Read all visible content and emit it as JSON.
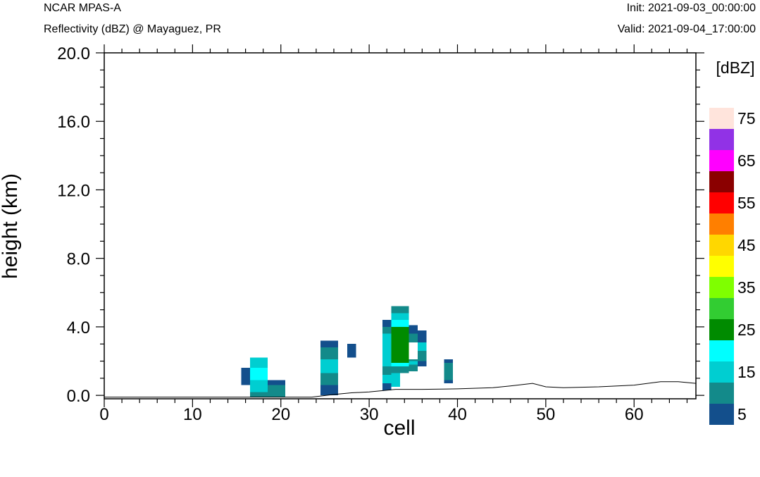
{
  "header": {
    "model": "NCAR MPAS-A",
    "field": "Reflectivity (dBZ) @ Mayaguez, PR",
    "init": "Init: 2021-09-03_00:00:00",
    "valid": "Valid: 2021-09-04_17:00:00"
  },
  "chart_data": {
    "type": "heatmap",
    "xlabel": "cell",
    "ylabel": "height (km)",
    "xlim": [
      0,
      67
    ],
    "ylim": [
      -0.2,
      20.0
    ],
    "x_ticks": [
      0,
      10,
      20,
      30,
      40,
      50,
      60
    ],
    "y_ticks": [
      0.0,
      4.0,
      8.0,
      12.0,
      16.0,
      20.0
    ],
    "y_tick_labels": [
      "0.0",
      "4.0",
      "8.0",
      "12.0",
      "16.0",
      "20.0"
    ],
    "colorbar": {
      "unit_label": "[dBZ]",
      "labels": [
        "5",
        "15",
        "25",
        "35",
        "45",
        "55",
        "65",
        "75"
      ],
      "levels": [
        5,
        10,
        15,
        20,
        25,
        30,
        35,
        40,
        45,
        50,
        55,
        60,
        65,
        70,
        75
      ],
      "colors": [
        "#134f8c",
        "#138a8a",
        "#00ced1",
        "#00ffff",
        "#008b00",
        "#32cd32",
        "#7fff00",
        "#ffff00",
        "#ffd700",
        "#ff7f00",
        "#ff0000",
        "#8b0000",
        "#ff00ff",
        "#9132e6",
        "#ffe4dc"
      ]
    },
    "terrain": [
      [
        0,
        -0.1
      ],
      [
        23.5,
        -0.1
      ],
      [
        26,
        0.05
      ],
      [
        28,
        0.15
      ],
      [
        30,
        0.2
      ],
      [
        33,
        0.35
      ],
      [
        36,
        0.35
      ],
      [
        40,
        0.38
      ],
      [
        44,
        0.45
      ],
      [
        46,
        0.55
      ],
      [
        48.5,
        0.7
      ],
      [
        50,
        0.5
      ],
      [
        52,
        0.45
      ],
      [
        56,
        0.5
      ],
      [
        60,
        0.6
      ],
      [
        63,
        0.8
      ],
      [
        65,
        0.8
      ],
      [
        67,
        0.7
      ]
    ],
    "cells": [
      {
        "x0": 15.5,
        "x1": 16.5,
        "y0": 0.6,
        "y1": 1.6,
        "dbz": 5
      },
      {
        "x0": 16.5,
        "x1": 18.5,
        "y0": 1.6,
        "y1": 2.2,
        "dbz": 15
      },
      {
        "x0": 16.5,
        "x1": 18.5,
        "y0": 0.9,
        "y1": 1.6,
        "dbz": 20
      },
      {
        "x0": 16.5,
        "x1": 18.5,
        "y0": 0.2,
        "y1": 0.9,
        "dbz": 15
      },
      {
        "x0": 16.5,
        "x1": 18.5,
        "y0": -0.1,
        "y1": 0.2,
        "dbz": 10
      },
      {
        "x0": 18.5,
        "x1": 20.5,
        "y0": 0.6,
        "y1": 0.9,
        "dbz": 5
      },
      {
        "x0": 18.5,
        "x1": 20.5,
        "y0": -0.1,
        "y1": 0.6,
        "dbz": 10
      },
      {
        "x0": 24.5,
        "x1": 26.5,
        "y0": 2.8,
        "y1": 3.2,
        "dbz": 5
      },
      {
        "x0": 24.5,
        "x1": 26.5,
        "y0": 2.1,
        "y1": 2.8,
        "dbz": 10
      },
      {
        "x0": 24.5,
        "x1": 26.5,
        "y0": 1.3,
        "y1": 2.1,
        "dbz": 15
      },
      {
        "x0": 24.5,
        "x1": 26.5,
        "y0": 0.6,
        "y1": 1.3,
        "dbz": 10
      },
      {
        "x0": 24.5,
        "x1": 26.5,
        "y0": 0.0,
        "y1": 0.6,
        "dbz": 5
      },
      {
        "x0": 27.5,
        "x1": 28.5,
        "y0": 2.2,
        "y1": 3.0,
        "dbz": 5
      },
      {
        "x0": 31.5,
        "x1": 32.5,
        "y0": 4.0,
        "y1": 4.4,
        "dbz": 5
      },
      {
        "x0": 31.5,
        "x1": 32.5,
        "y0": 3.6,
        "y1": 4.0,
        "dbz": 10
      },
      {
        "x0": 31.5,
        "x1": 32.5,
        "y0": 1.7,
        "y1": 3.6,
        "dbz": 15
      },
      {
        "x0": 31.5,
        "x1": 32.5,
        "y0": 1.2,
        "y1": 1.7,
        "dbz": 10
      },
      {
        "x0": 31.5,
        "x1": 32.5,
        "y0": 0.7,
        "y1": 1.2,
        "dbz": 15
      },
      {
        "x0": 31.5,
        "x1": 32.5,
        "y0": 0.3,
        "y1": 0.7,
        "dbz": 5
      },
      {
        "x0": 32.5,
        "x1": 34.5,
        "y0": 4.8,
        "y1": 5.2,
        "dbz": 10
      },
      {
        "x0": 32.5,
        "x1": 34.5,
        "y0": 4.4,
        "y1": 4.8,
        "dbz": 15
      },
      {
        "x0": 32.5,
        "x1": 34.5,
        "y0": 4.0,
        "y1": 4.4,
        "dbz": 20
      },
      {
        "x0": 32.5,
        "x1": 34.5,
        "y0": 1.9,
        "y1": 4.0,
        "dbz": 25
      },
      {
        "x0": 32.5,
        "x1": 34.5,
        "y0": 1.7,
        "y1": 1.9,
        "dbz": 20
      },
      {
        "x0": 32.5,
        "x1": 34.5,
        "y0": 1.3,
        "y1": 1.7,
        "dbz": 10
      },
      {
        "x0": 32.5,
        "x1": 33.5,
        "y0": 0.5,
        "y1": 1.3,
        "dbz": 15
      },
      {
        "x0": 34.5,
        "x1": 35.5,
        "y0": 3.6,
        "y1": 4.1,
        "dbz": 5
      },
      {
        "x0": 34.5,
        "x1": 35.5,
        "y0": 3.1,
        "y1": 3.6,
        "dbz": 10
      },
      {
        "x0": 34.5,
        "x1": 35.5,
        "y0": 1.8,
        "y1": 2.0,
        "dbz": 15
      },
      {
        "x0": 34.5,
        "x1": 35.5,
        "y0": 1.4,
        "y1": 1.8,
        "dbz": 10
      },
      {
        "x0": 34.5,
        "x1": 36.5,
        "y0": 2.0,
        "y1": 2.1,
        "dbz": 10
      },
      {
        "x0": 35.5,
        "x1": 36.5,
        "y0": 3.1,
        "y1": 3.8,
        "dbz": 5
      },
      {
        "x0": 35.5,
        "x1": 36.5,
        "y0": 2.6,
        "y1": 3.1,
        "dbz": 15
      },
      {
        "x0": 35.5,
        "x1": 36.5,
        "y0": 2.1,
        "y1": 2.6,
        "dbz": 10
      },
      {
        "x0": 35.5,
        "x1": 36.5,
        "y0": 1.7,
        "y1": 2.0,
        "dbz": 5
      },
      {
        "x0": 38.5,
        "x1": 39.5,
        "y0": 1.9,
        "y1": 2.1,
        "dbz": 5
      },
      {
        "x0": 38.5,
        "x1": 39.5,
        "y0": 0.9,
        "y1": 1.9,
        "dbz": 10
      },
      {
        "x0": 38.5,
        "x1": 39.5,
        "y0": 0.7,
        "y1": 0.9,
        "dbz": 5
      }
    ]
  }
}
